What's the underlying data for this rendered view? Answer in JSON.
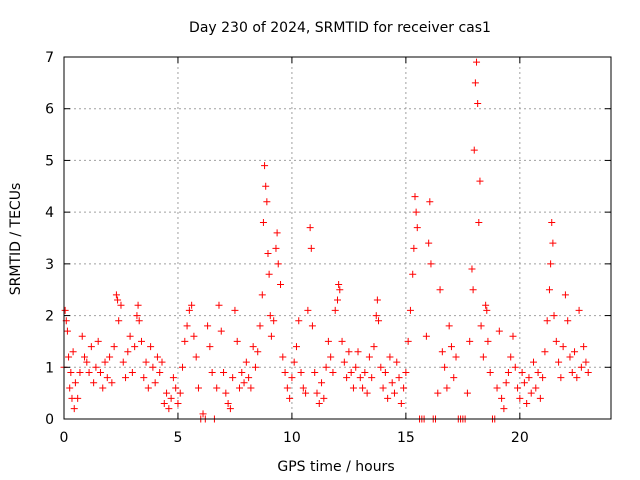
{
  "chart_data": {
    "type": "scatter",
    "title": "Day 230 of 2024, SRMTID for receiver cas1",
    "xlabel": "GPS time / hours",
    "ylabel": "SRMTID / TECUs",
    "xlim": [
      0,
      24
    ],
    "ylim": [
      0,
      7
    ],
    "xticks": [
      0,
      5,
      10,
      15,
      20
    ],
    "yticks": [
      0,
      1,
      2,
      3,
      4,
      5,
      6,
      7
    ],
    "xtick_labels": [
      "0",
      "5",
      "10",
      "15",
      "20"
    ],
    "ytick_labels": [
      "0",
      "1",
      "2",
      "3",
      "4",
      "5",
      "6",
      "7"
    ],
    "grid": true,
    "marker": "+",
    "color": "#ff0000",
    "series": [
      {
        "name": "SRMTID",
        "points": [
          [
            0.0,
            1.0
          ],
          [
            0.05,
            2.1
          ],
          [
            0.1,
            1.9
          ],
          [
            0.15,
            1.7
          ],
          [
            0.2,
            1.2
          ],
          [
            0.25,
            0.6
          ],
          [
            0.3,
            0.9
          ],
          [
            0.35,
            0.4
          ],
          [
            0.4,
            1.3
          ],
          [
            0.45,
            0.2
          ],
          [
            0.5,
            0.7
          ],
          [
            0.6,
            0.4
          ],
          [
            0.7,
            0.9
          ],
          [
            0.8,
            1.6
          ],
          [
            0.9,
            1.2
          ],
          [
            1.0,
            1.1
          ],
          [
            1.1,
            0.9
          ],
          [
            1.2,
            1.4
          ],
          [
            1.3,
            0.7
          ],
          [
            1.4,
            1.0
          ],
          [
            1.5,
            1.5
          ],
          [
            1.6,
            0.9
          ],
          [
            1.7,
            0.6
          ],
          [
            1.8,
            1.1
          ],
          [
            1.9,
            0.8
          ],
          [
            2.0,
            1.2
          ],
          [
            2.1,
            0.7
          ],
          [
            2.2,
            1.4
          ],
          [
            2.3,
            2.4
          ],
          [
            2.35,
            2.3
          ],
          [
            2.4,
            1.9
          ],
          [
            2.5,
            2.2
          ],
          [
            2.6,
            1.1
          ],
          [
            2.7,
            0.8
          ],
          [
            2.8,
            1.3
          ],
          [
            2.9,
            1.6
          ],
          [
            3.0,
            0.9
          ],
          [
            3.1,
            1.4
          ],
          [
            3.2,
            2.0
          ],
          [
            3.25,
            2.2
          ],
          [
            3.3,
            1.9
          ],
          [
            3.4,
            1.5
          ],
          [
            3.5,
            0.8
          ],
          [
            3.6,
            1.1
          ],
          [
            3.7,
            0.6
          ],
          [
            3.8,
            1.4
          ],
          [
            3.9,
            1.0
          ],
          [
            4.0,
            0.7
          ],
          [
            4.1,
            1.2
          ],
          [
            4.2,
            0.9
          ],
          [
            4.3,
            1.1
          ],
          [
            4.4,
            0.3
          ],
          [
            4.5,
            0.5
          ],
          [
            4.6,
            0.2
          ],
          [
            4.7,
            0.4
          ],
          [
            4.8,
            0.8
          ],
          [
            4.9,
            0.6
          ],
          [
            5.0,
            0.3
          ],
          [
            5.1,
            0.5
          ],
          [
            5.2,
            1.0
          ],
          [
            5.3,
            1.5
          ],
          [
            5.4,
            1.8
          ],
          [
            5.5,
            2.1
          ],
          [
            5.6,
            2.2
          ],
          [
            5.7,
            1.6
          ],
          [
            5.8,
            1.2
          ],
          [
            5.9,
            0.6
          ],
          [
            6.0,
            0.0
          ],
          [
            6.1,
            0.1
          ],
          [
            6.2,
            0.0
          ],
          [
            6.3,
            1.8
          ],
          [
            6.4,
            1.4
          ],
          [
            6.5,
            0.9
          ],
          [
            6.6,
            0.0
          ],
          [
            6.7,
            0.6
          ],
          [
            6.8,
            2.2
          ],
          [
            6.9,
            1.7
          ],
          [
            7.0,
            0.9
          ],
          [
            7.1,
            0.5
          ],
          [
            7.2,
            0.3
          ],
          [
            7.3,
            0.2
          ],
          [
            7.4,
            0.8
          ],
          [
            7.5,
            2.1
          ],
          [
            7.6,
            1.5
          ],
          [
            7.7,
            0.6
          ],
          [
            7.8,
            0.9
          ],
          [
            7.9,
            0.7
          ],
          [
            8.0,
            1.1
          ],
          [
            8.1,
            0.8
          ],
          [
            8.2,
            0.6
          ],
          [
            8.3,
            1.4
          ],
          [
            8.4,
            1.0
          ],
          [
            8.5,
            1.3
          ],
          [
            8.6,
            1.8
          ],
          [
            8.7,
            2.4
          ],
          [
            8.75,
            3.8
          ],
          [
            8.8,
            4.9
          ],
          [
            8.85,
            4.5
          ],
          [
            8.9,
            4.2
          ],
          [
            8.95,
            3.2
          ],
          [
            9.0,
            2.8
          ],
          [
            9.05,
            2.0
          ],
          [
            9.1,
            1.6
          ],
          [
            9.2,
            1.9
          ],
          [
            9.3,
            3.3
          ],
          [
            9.35,
            3.6
          ],
          [
            9.4,
            3.0
          ],
          [
            9.5,
            2.6
          ],
          [
            9.6,
            1.2
          ],
          [
            9.7,
            0.9
          ],
          [
            9.8,
            0.6
          ],
          [
            9.9,
            0.4
          ],
          [
            10.0,
            0.8
          ],
          [
            10.1,
            1.1
          ],
          [
            10.2,
            1.4
          ],
          [
            10.3,
            1.9
          ],
          [
            10.4,
            0.9
          ],
          [
            10.5,
            0.6
          ],
          [
            10.6,
            0.5
          ],
          [
            10.7,
            2.1
          ],
          [
            10.8,
            3.7
          ],
          [
            10.85,
            3.3
          ],
          [
            10.9,
            1.8
          ],
          [
            11.0,
            0.9
          ],
          [
            11.1,
            0.5
          ],
          [
            11.2,
            0.3
          ],
          [
            11.3,
            0.7
          ],
          [
            11.4,
            0.4
          ],
          [
            11.5,
            1.0
          ],
          [
            11.6,
            1.5
          ],
          [
            11.7,
            1.2
          ],
          [
            11.8,
            0.9
          ],
          [
            11.9,
            2.1
          ],
          [
            12.0,
            2.3
          ],
          [
            12.05,
            2.6
          ],
          [
            12.1,
            2.5
          ],
          [
            12.2,
            1.5
          ],
          [
            12.3,
            1.1
          ],
          [
            12.4,
            0.8
          ],
          [
            12.5,
            1.3
          ],
          [
            12.6,
            0.9
          ],
          [
            12.7,
            0.6
          ],
          [
            12.8,
            1.0
          ],
          [
            12.9,
            1.3
          ],
          [
            13.0,
            0.8
          ],
          [
            13.1,
            0.6
          ],
          [
            13.2,
            0.9
          ],
          [
            13.3,
            0.5
          ],
          [
            13.4,
            1.2
          ],
          [
            13.5,
            0.8
          ],
          [
            13.6,
            1.4
          ],
          [
            13.7,
            2.0
          ],
          [
            13.75,
            2.3
          ],
          [
            13.8,
            1.9
          ],
          [
            13.9,
            1.0
          ],
          [
            14.0,
            0.6
          ],
          [
            14.1,
            0.9
          ],
          [
            14.2,
            0.4
          ],
          [
            14.3,
            1.2
          ],
          [
            14.4,
            0.7
          ],
          [
            14.5,
            0.5
          ],
          [
            14.6,
            1.1
          ],
          [
            14.7,
            0.8
          ],
          [
            14.8,
            0.3
          ],
          [
            14.9,
            0.6
          ],
          [
            15.0,
            0.9
          ],
          [
            15.1,
            1.5
          ],
          [
            15.2,
            2.1
          ],
          [
            15.3,
            2.8
          ],
          [
            15.35,
            3.3
          ],
          [
            15.4,
            4.3
          ],
          [
            15.45,
            4.0
          ],
          [
            15.5,
            3.7
          ],
          [
            15.6,
            0.0
          ],
          [
            15.7,
            0.0
          ],
          [
            15.8,
            0.0
          ],
          [
            15.9,
            1.6
          ],
          [
            16.0,
            3.4
          ],
          [
            16.05,
            4.2
          ],
          [
            16.1,
            3.0
          ],
          [
            16.2,
            0.0
          ],
          [
            16.3,
            0.0
          ],
          [
            16.4,
            0.5
          ],
          [
            16.5,
            2.5
          ],
          [
            16.6,
            1.3
          ],
          [
            16.7,
            1.0
          ],
          [
            16.8,
            0.6
          ],
          [
            16.9,
            1.8
          ],
          [
            17.0,
            1.4
          ],
          [
            17.1,
            0.8
          ],
          [
            17.2,
            1.2
          ],
          [
            17.3,
            0.0
          ],
          [
            17.4,
            0.0
          ],
          [
            17.5,
            0.0
          ],
          [
            17.6,
            0.0
          ],
          [
            17.7,
            0.5
          ],
          [
            17.8,
            1.5
          ],
          [
            17.9,
            2.9
          ],
          [
            17.95,
            2.5
          ],
          [
            18.0,
            5.2
          ],
          [
            18.05,
            6.5
          ],
          [
            18.1,
            6.9
          ],
          [
            18.15,
            6.1
          ],
          [
            18.2,
            3.8
          ],
          [
            18.25,
            4.6
          ],
          [
            18.3,
            1.8
          ],
          [
            18.4,
            1.2
          ],
          [
            18.5,
            2.2
          ],
          [
            18.55,
            2.1
          ],
          [
            18.6,
            1.5
          ],
          [
            18.7,
            0.9
          ],
          [
            18.8,
            0.0
          ],
          [
            18.9,
            0.0
          ],
          [
            19.0,
            0.6
          ],
          [
            19.1,
            1.7
          ],
          [
            19.2,
            0.4
          ],
          [
            19.3,
            0.2
          ],
          [
            19.4,
            0.7
          ],
          [
            19.5,
            0.9
          ],
          [
            19.6,
            1.2
          ],
          [
            19.7,
            1.6
          ],
          [
            19.8,
            1.0
          ],
          [
            19.9,
            0.6
          ],
          [
            20.0,
            0.4
          ],
          [
            20.1,
            0.9
          ],
          [
            20.2,
            0.7
          ],
          [
            20.3,
            0.3
          ],
          [
            20.4,
            0.8
          ],
          [
            20.5,
            0.5
          ],
          [
            20.6,
            1.1
          ],
          [
            20.7,
            0.6
          ],
          [
            20.8,
            0.9
          ],
          [
            20.9,
            0.4
          ],
          [
            21.0,
            0.8
          ],
          [
            21.1,
            1.3
          ],
          [
            21.2,
            1.9
          ],
          [
            21.3,
            2.5
          ],
          [
            21.35,
            3.0
          ],
          [
            21.4,
            3.8
          ],
          [
            21.45,
            3.4
          ],
          [
            21.5,
            2.0
          ],
          [
            21.6,
            1.5
          ],
          [
            21.7,
            1.1
          ],
          [
            21.8,
            0.8
          ],
          [
            21.9,
            1.4
          ],
          [
            22.0,
            2.4
          ],
          [
            22.1,
            1.9
          ],
          [
            22.2,
            1.2
          ],
          [
            22.3,
            0.9
          ],
          [
            22.4,
            1.3
          ],
          [
            22.5,
            0.8
          ],
          [
            22.6,
            2.1
          ],
          [
            22.7,
            1.0
          ],
          [
            22.8,
            1.4
          ],
          [
            22.9,
            1.1
          ],
          [
            23.0,
            0.9
          ]
        ]
      }
    ]
  }
}
